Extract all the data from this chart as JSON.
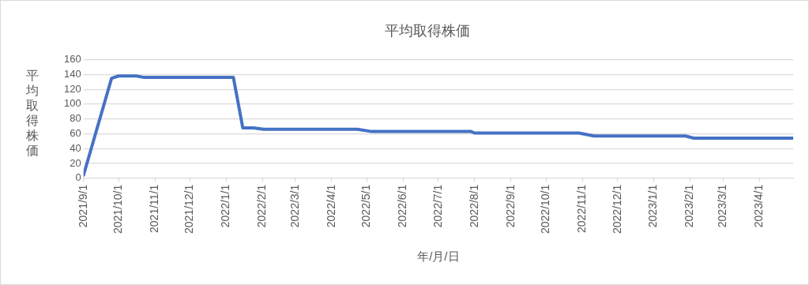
{
  "chart_data": {
    "type": "line",
    "title": "平均取得株価",
    "xlabel": "年/月/日",
    "ylabel": "平均取得株価",
    "x": [
      "2021-09-01",
      "2021-09-25",
      "2021-10-01",
      "2021-10-16",
      "2021-10-23",
      "2022-01-07",
      "2022-01-15",
      "2022-01-24",
      "2022-02-02",
      "2022-04-23",
      "2022-05-05",
      "2022-07-29",
      "2022-08-01",
      "2022-10-29",
      "2022-11-11",
      "2023-01-28",
      "2023-02-04",
      "2023-04-30"
    ],
    "series": [
      {
        "color": "#4472c4",
        "values": [
          4,
          135,
          138,
          138,
          136,
          136,
          68,
          68,
          66,
          66,
          63,
          63,
          61,
          61,
          57,
          57,
          54,
          54
        ]
      }
    ],
    "xlim": [
      "2021-09-01",
      "2023-04-30"
    ],
    "xticks": [
      {
        "value": "2021-09-01",
        "label": "2021/9/1"
      },
      {
        "value": "2021-10-01",
        "label": "2021/10/1"
      },
      {
        "value": "2021-11-01",
        "label": "2021/11/1"
      },
      {
        "value": "2021-12-01",
        "label": "2021/12/1"
      },
      {
        "value": "2022-01-01",
        "label": "2022/1/1"
      },
      {
        "value": "2022-02-01",
        "label": "2022/2/1"
      },
      {
        "value": "2022-03-01",
        "label": "2022/3/1"
      },
      {
        "value": "2022-04-01",
        "label": "2022/4/1"
      },
      {
        "value": "2022-05-01",
        "label": "2022/5/1"
      },
      {
        "value": "2022-06-01",
        "label": "2022/6/1"
      },
      {
        "value": "2022-07-01",
        "label": "2022/7/1"
      },
      {
        "value": "2022-08-01",
        "label": "2022/8/1"
      },
      {
        "value": "2022-09-01",
        "label": "2022/9/1"
      },
      {
        "value": "2022-10-01",
        "label": "2022/10/1"
      },
      {
        "value": "2022-11-01",
        "label": "2022/11/1"
      },
      {
        "value": "2022-12-01",
        "label": "2022/12/1"
      },
      {
        "value": "2023-01-01",
        "label": "2023/1/1"
      },
      {
        "value": "2023-02-01",
        "label": "2023/2/1"
      },
      {
        "value": "2023-03-01",
        "label": "2023/3/1"
      },
      {
        "value": "2023-04-01",
        "label": "2023/4/1"
      }
    ],
    "ylim": [
      0,
      160
    ],
    "yticks": [
      0,
      20,
      40,
      60,
      80,
      100,
      120,
      140,
      160
    ],
    "grid": "y",
    "legend": false,
    "marker": "none",
    "line_style": "solid"
  }
}
